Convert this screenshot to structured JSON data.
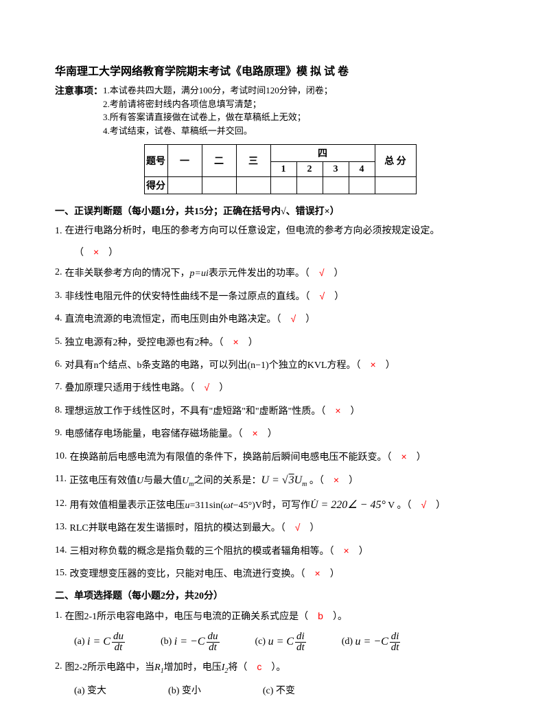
{
  "title": "华南理工大学网络教育学院期末考试《电路原理》模 拟 试 卷",
  "notice_label": "注意事项：",
  "notices": [
    "1.本试卷共四大题，满分100分，考试时间120分钟，闭卷；",
    "2.考前请将密封线内各项信息填写清楚；",
    "3.所有答案请直接做在试卷上，做在草稿纸上无效；",
    "4.考试结束，试卷、草稿纸一并交回。"
  ],
  "table": {
    "row1_label": "题号",
    "cols": [
      "一",
      "二",
      "三"
    ],
    "four_label": "四",
    "four_subs": [
      "1",
      "2",
      "3",
      "4"
    ],
    "total_label": "总 分",
    "row2_label": "得分"
  },
  "section1": {
    "header": "一、正误判断题（每小题1分，共15分；正确在括号内√、错误打×）",
    "q1": {
      "num": "1.",
      "text": "在进行电路分析时，电压的参考方向可以任意设定，但电流的参考方向必须按规定设定。",
      "ans": "×"
    },
    "q2": {
      "num": "2.",
      "text_a": "在非关联参考方向的情况下，",
      "text_b": "表示元件发出的功率。（",
      "ans": "√",
      "close": "）"
    },
    "q3": {
      "num": "3.",
      "text": "非线性电阻元件的伏安特性曲线不是一条过原点的直线。（",
      "ans": "√",
      "close": "）"
    },
    "q4": {
      "num": "4.",
      "text": "直流电流源的电流恒定，而电压则由外电路决定。（",
      "ans": "√",
      "close": "）"
    },
    "q5": {
      "num": "5.",
      "text": "独立电源有2种，受控电源也有2种。（",
      "ans": "×",
      "close": "）"
    },
    "q6": {
      "num": "6.",
      "text": "对具有n个结点、b条支路的电路，可以列出(n−1)个独立的KVL方程。（",
      "ans": "×",
      "close": "）"
    },
    "q7": {
      "num": "7.",
      "text": "叠加原理只适用于线性电路。（",
      "ans": "√",
      "close": "）"
    },
    "q8": {
      "num": "8.",
      "text": "理想运放工作于线性区时，不具有\"虚短路\"和\"虚断路\"性质。（",
      "ans": "×",
      "close": "）"
    },
    "q9": {
      "num": "9.",
      "text": "电感储存电场能量，电容储存磁场能量。（",
      "ans": "×",
      "close": "）"
    },
    "q10": {
      "num": "10.",
      "text": "在换路前后电感电流为有限值的条件下，换路前后瞬间电感电压不能跃变。（",
      "ans": "×",
      "close": "）"
    },
    "q11": {
      "num": "11.",
      "text_a": "正弦电压有效值",
      "text_b": "与最大值",
      "text_c": "之间的关系是：",
      "ans": "×",
      "close": "）"
    },
    "q12": {
      "num": "12.",
      "text_a": "用有效值相量表示正弦电压",
      "text_b": "=311sin(",
      "text_c": "−45°)V时，可写作",
      "ans": "√",
      "close": "）"
    },
    "q13": {
      "num": "13.",
      "text": "RLC并联电路在发生谐振时，阻抗的模达到最大。（",
      "ans": "√",
      "close": "）"
    },
    "q14": {
      "num": "14.",
      "text": "三相对称负载的概念是指负载的三个阻抗的模或者辐角相等。（",
      "ans": "×",
      "close": "）"
    },
    "q15": {
      "num": "15.",
      "text": "改变理想变压器的变比，只能对电压、电流进行变换。（",
      "ans": "×",
      "close": "）"
    }
  },
  "section2": {
    "header": "二、单项选择题（每小题2分，共20分）",
    "q1": {
      "num": "1.",
      "text": "在图2-1所示电容电路中，电压与电流的正确关系式应是（",
      "ans": "b",
      "close": "）。"
    },
    "q1opts": {
      "a": "(a)",
      "b": "(b)",
      "c": "(c)",
      "d": "(d)"
    },
    "q2": {
      "num": "2.",
      "text_a": "图2-2所示电路中，当",
      "text_b": "增加时，电压",
      "text_c": "将（",
      "ans": "c",
      "close": "）。"
    },
    "q2opts": {
      "a": "(a) 变大",
      "b": "(b) 变小",
      "c": "(c) 不变"
    }
  },
  "colors": {
    "answer": "#ff0000",
    "text": "#000000",
    "bg": "#ffffff"
  }
}
